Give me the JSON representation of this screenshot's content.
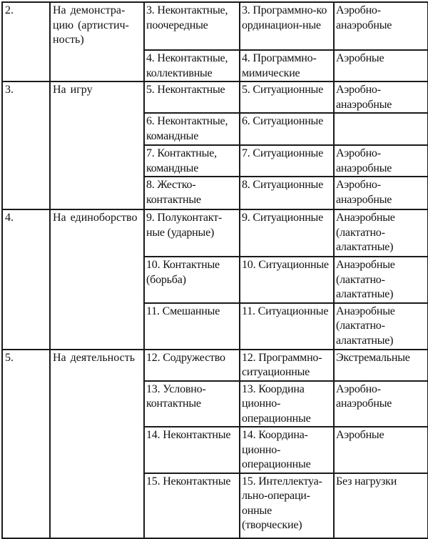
{
  "rows": [
    {
      "num": "2.",
      "focus": "На демонстра-цию (артистич-ность)",
      "subs": [
        {
          "type": "3. Неконтактные, поочередные",
          "movement": "3. Программно-ко ординацион-ные",
          "load": "Аэробно-анаэробные"
        },
        {
          "type": "4. Неконтактные, коллективные",
          "movement": "4. Программно-мимические",
          "load": "Аэробные"
        }
      ]
    },
    {
      "num": "3.",
      "focus": "На игру",
      "subs": [
        {
          "type": "5. Неконтактные",
          "movement": "5. Ситуационные",
          "load": "Аэробно-анаэробные"
        },
        {
          "type": "6. Неконтактные, командные",
          "movement": "6. Ситуационные",
          "load": ""
        },
        {
          "type": "7. Контактные, командные",
          "movement": "7. Ситуационные",
          "load": "Аэробно-анаэробные"
        },
        {
          "type": "8. Жестко-контактные",
          "movement": "8. Ситуационные",
          "load": "Аэробно-анаэробные"
        }
      ]
    },
    {
      "num": "4.",
      "focus": "На единоборство",
      "subs": [
        {
          "type": "9. Полуконтакт-ные (ударные)",
          "movement": "9. Ситуационные",
          "load": "Анаэробные (лактатно-алактатные)"
        },
        {
          "type": "10. Контактные (борьба)",
          "movement": "10. Ситуационные",
          "load": "Анаэробные (лактатно-алактатные)"
        },
        {
          "type": "11. Смешанные",
          "movement": "11. Ситуационные",
          "load": "Анаэробные (лактатно-алактатные)"
        }
      ]
    },
    {
      "num": "5.",
      "focus": "На деятельность",
      "subs": [
        {
          "type": "12. Содружество",
          "movement": "12. Программно-ситуационные",
          "load": "Экстремальные"
        },
        {
          "type": "13. Условно-контактные",
          "movement": "13. Координа ционно-операционные",
          "load": "Аэробно-анаэробные"
        },
        {
          "type": "14. Неконтактные",
          "movement": "14. Координа-ционно-операционные",
          "load": "Аэробные"
        },
        {
          "type": "15. Неконтактные",
          "movement": "15. Интеллектуа-льно-операци-онные (творческие)",
          "load": "Без нагрузки"
        }
      ]
    }
  ]
}
